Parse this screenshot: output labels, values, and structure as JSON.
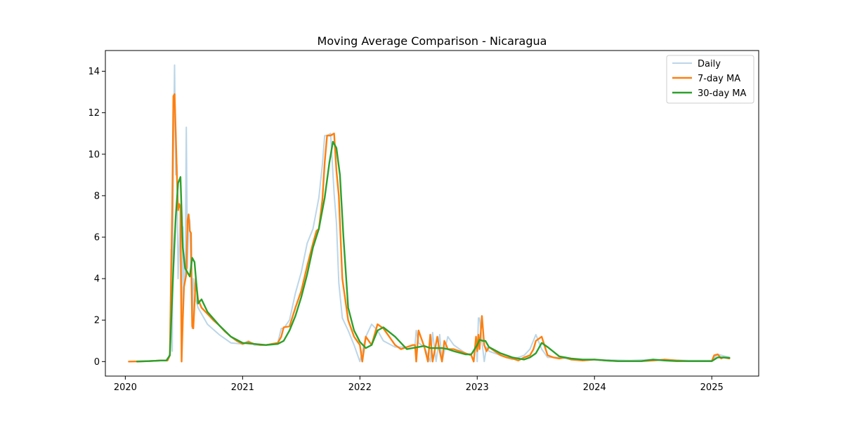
{
  "chart_data": {
    "type": "line",
    "title": "Moving Average Comparison - Nicaragua",
    "xlabel": "",
    "ylabel": "",
    "xlim": [
      2019.83,
      2025.4
    ],
    "ylim": [
      -0.7,
      15.0
    ],
    "x_ticks": [
      2020,
      2021,
      2022,
      2023,
      2024,
      2025
    ],
    "y_ticks": [
      0,
      2,
      4,
      6,
      8,
      10,
      12,
      14
    ],
    "grid": false,
    "legend_position": "top-right",
    "series": [
      {
        "name": "Daily",
        "color": "#1f77b4",
        "opacity": 0.3,
        "width": 2,
        "x": [
          2020.03,
          2020.3,
          2020.36,
          2020.38,
          2020.39,
          2020.4,
          2020.41,
          2020.42,
          2020.43,
          2020.44,
          2020.45,
          2020.47,
          2020.48,
          2020.49,
          2020.5,
          2020.51,
          2020.52,
          2020.53,
          2020.54,
          2020.55,
          2020.57,
          2020.58,
          2020.6,
          2020.62,
          2020.65,
          2020.7,
          2020.8,
          2020.9,
          2021.0,
          2021.05,
          2021.1,
          2021.2,
          2021.3,
          2021.33,
          2021.35,
          2021.4,
          2021.45,
          2021.5,
          2021.55,
          2021.6,
          2021.65,
          2021.68,
          2021.7,
          2021.72,
          2021.75,
          2021.78,
          2021.8,
          2021.82,
          2021.85,
          2021.9,
          2021.95,
          2022.0,
          2022.05,
          2022.1,
          2022.15,
          2022.2,
          2022.3,
          2022.4,
          2022.47,
          2022.48,
          2022.5,
          2022.55,
          2022.6,
          2022.62,
          2022.65,
          2022.68,
          2022.7,
          2022.75,
          2022.8,
          2022.9,
          2022.95,
          2022.97,
          2022.99,
          2023.0,
          2023.01,
          2023.02,
          2023.04,
          2023.06,
          2023.08,
          2023.1,
          2023.2,
          2023.3,
          2023.4,
          2023.45,
          2023.5,
          2023.55,
          2023.6,
          2023.7,
          2023.8,
          2024.0,
          2024.3,
          2024.5,
          2024.8,
          2025.0,
          2025.05,
          2025.15
        ],
        "y": [
          0.0,
          0.05,
          0.05,
          0.4,
          5.4,
          0.5,
          10.0,
          14.3,
          9.0,
          9.5,
          4.0,
          7.2,
          0.0,
          6.5,
          3.6,
          4.0,
          11.3,
          4.5,
          7.0,
          6.8,
          1.6,
          4.0,
          3.0,
          2.6,
          2.3,
          1.8,
          1.3,
          0.9,
          0.85,
          1.0,
          0.8,
          0.8,
          0.9,
          1.6,
          1.6,
          2.0,
          3.3,
          4.3,
          5.7,
          6.4,
          7.9,
          9.5,
          10.9,
          10.9,
          11.0,
          8.1,
          6.7,
          3.8,
          2.1,
          1.5,
          0.8,
          0.0,
          1.2,
          1.8,
          1.5,
          1.0,
          0.7,
          0.7,
          0.8,
          1.5,
          0.9,
          0.7,
          0.0,
          1.4,
          0.0,
          1.3,
          0.0,
          1.2,
          0.8,
          0.4,
          0.3,
          0.0,
          1.0,
          0.0,
          2.1,
          2.1,
          1.0,
          0.0,
          0.7,
          0.5,
          0.3,
          0.1,
          0.3,
          0.6,
          1.3,
          0.6,
          0.2,
          0.2,
          0.1,
          0.1,
          0.05,
          0.1,
          0.05,
          0.05,
          0.35,
          0.2
        ]
      },
      {
        "name": "7-day MA",
        "color": "#ff7f0e",
        "opacity": 1,
        "width": 2.4,
        "x": [
          2020.03,
          2020.2,
          2020.3,
          2020.36,
          2020.38,
          2020.4,
          2020.41,
          2020.42,
          2020.43,
          2020.44,
          2020.45,
          2020.46,
          2020.47,
          2020.48,
          2020.49,
          2020.5,
          2020.52,
          2020.53,
          2020.54,
          2020.55,
          2020.56,
          2020.57,
          2020.58,
          2020.6,
          2020.62,
          2020.65,
          2020.7,
          2020.75,
          2020.8,
          2020.85,
          2020.9,
          2020.95,
          2021.0,
          2021.05,
          2021.1,
          2021.15,
          2021.2,
          2021.25,
          2021.3,
          2021.33,
          2021.35,
          2021.4,
          2021.45,
          2021.5,
          2021.55,
          2021.6,
          2021.63,
          2021.65,
          2021.68,
          2021.7,
          2021.72,
          2021.75,
          2021.78,
          2021.8,
          2021.82,
          2021.85,
          2021.9,
          2021.95,
          2022.0,
          2022.02,
          2022.05,
          2022.1,
          2022.15,
          2022.2,
          2022.25,
          2022.3,
          2022.35,
          2022.4,
          2022.45,
          2022.47,
          2022.48,
          2022.5,
          2022.55,
          2022.58,
          2022.6,
          2022.62,
          2022.64,
          2022.66,
          2022.68,
          2022.7,
          2022.72,
          2022.75,
          2022.8,
          2022.85,
          2022.9,
          2022.95,
          2022.97,
          2022.99,
          2023.0,
          2023.01,
          2023.02,
          2023.04,
          2023.06,
          2023.08,
          2023.1,
          2023.15,
          2023.2,
          2023.25,
          2023.3,
          2023.35,
          2023.4,
          2023.45,
          2023.48,
          2023.5,
          2023.55,
          2023.6,
          2023.65,
          2023.7,
          2023.75,
          2023.8,
          2023.9,
          2024.0,
          2024.1,
          2024.2,
          2024.3,
          2024.4,
          2024.5,
          2024.6,
          2024.7,
          2024.8,
          2024.9,
          2025.0,
          2025.02,
          2025.05,
          2025.08,
          2025.1,
          2025.15
        ],
        "y": [
          0.0,
          0.02,
          0.05,
          0.05,
          0.3,
          7.5,
          12.8,
          12.9,
          11.0,
          9.0,
          7.3,
          7.6,
          7.4,
          0.0,
          2.0,
          3.6,
          4.2,
          6.8,
          7.1,
          6.3,
          6.2,
          1.7,
          1.6,
          4.0,
          3.0,
          2.6,
          2.3,
          2.0,
          1.75,
          1.45,
          1.2,
          1.0,
          0.85,
          0.95,
          0.85,
          0.8,
          0.8,
          0.85,
          0.9,
          1.2,
          1.65,
          1.7,
          2.6,
          3.4,
          4.6,
          5.7,
          6.3,
          6.4,
          7.8,
          9.6,
          10.9,
          10.9,
          11.0,
          9.2,
          8.0,
          4.0,
          2.0,
          1.2,
          0.8,
          0.0,
          1.2,
          0.8,
          1.8,
          1.6,
          1.2,
          0.8,
          0.6,
          0.7,
          0.8,
          0.8,
          0.0,
          1.5,
          0.7,
          0.0,
          1.3,
          0.0,
          0.6,
          1.2,
          0.5,
          0.0,
          1.0,
          0.6,
          0.6,
          0.5,
          0.4,
          0.3,
          0.0,
          1.2,
          0.5,
          1.3,
          0.6,
          2.2,
          0.8,
          0.5,
          0.7,
          0.5,
          0.3,
          0.2,
          0.15,
          0.05,
          0.2,
          0.3,
          0.6,
          1.0,
          1.2,
          0.3,
          0.2,
          0.15,
          0.2,
          0.1,
          0.05,
          0.1,
          0.05,
          0.02,
          0.02,
          0.02,
          0.05,
          0.1,
          0.05,
          0.02,
          0.02,
          0.02,
          0.3,
          0.35,
          0.15,
          0.2,
          0.15
        ]
      },
      {
        "name": "30-day MA",
        "color": "#2ca02c",
        "opacity": 1,
        "width": 2.4,
        "x": [
          2020.1,
          2020.2,
          2020.3,
          2020.35,
          2020.38,
          2020.41,
          2020.43,
          2020.45,
          2020.47,
          2020.49,
          2020.51,
          2020.53,
          2020.55,
          2020.57,
          2020.59,
          2020.62,
          2020.65,
          2020.7,
          2020.8,
          2020.9,
          2021.0,
          2021.1,
          2021.2,
          2021.3,
          2021.35,
          2021.4,
          2021.45,
          2021.5,
          2021.55,
          2021.6,
          2021.65,
          2021.7,
          2021.74,
          2021.77,
          2021.8,
          2021.83,
          2021.86,
          2021.9,
          2021.95,
          2022.0,
          2022.05,
          2022.1,
          2022.15,
          2022.2,
          2022.3,
          2022.4,
          2022.5,
          2022.55,
          2022.6,
          2022.7,
          2022.75,
          2022.8,
          2022.9,
          2022.95,
          2023.0,
          2023.02,
          2023.05,
          2023.07,
          2023.1,
          2023.2,
          2023.3,
          2023.4,
          2023.45,
          2023.5,
          2023.55,
          2023.6,
          2023.7,
          2023.8,
          2023.9,
          2024.0,
          2024.1,
          2024.2,
          2024.3,
          2024.4,
          2024.5,
          2024.6,
          2024.7,
          2024.8,
          2024.9,
          2025.0,
          2025.05,
          2025.1,
          2025.15
        ],
        "y": [
          0.0,
          0.02,
          0.05,
          0.05,
          0.3,
          4.5,
          7.0,
          8.6,
          8.9,
          5.5,
          4.5,
          4.3,
          4.1,
          5.0,
          4.8,
          2.8,
          3.0,
          2.4,
          1.75,
          1.2,
          0.9,
          0.85,
          0.8,
          0.85,
          1.0,
          1.5,
          2.2,
          3.1,
          4.2,
          5.5,
          6.4,
          7.9,
          9.6,
          10.6,
          10.3,
          9.0,
          6.0,
          2.6,
          1.5,
          0.95,
          0.65,
          0.8,
          1.5,
          1.65,
          1.2,
          0.6,
          0.7,
          0.75,
          0.65,
          0.65,
          0.6,
          0.5,
          0.35,
          0.35,
          0.8,
          1.05,
          1.0,
          1.0,
          0.7,
          0.4,
          0.2,
          0.1,
          0.2,
          0.4,
          0.9,
          0.7,
          0.25,
          0.15,
          0.1,
          0.1,
          0.05,
          0.02,
          0.02,
          0.02,
          0.1,
          0.05,
          0.02,
          0.02,
          0.02,
          0.02,
          0.2,
          0.2,
          0.18
        ]
      }
    ]
  }
}
